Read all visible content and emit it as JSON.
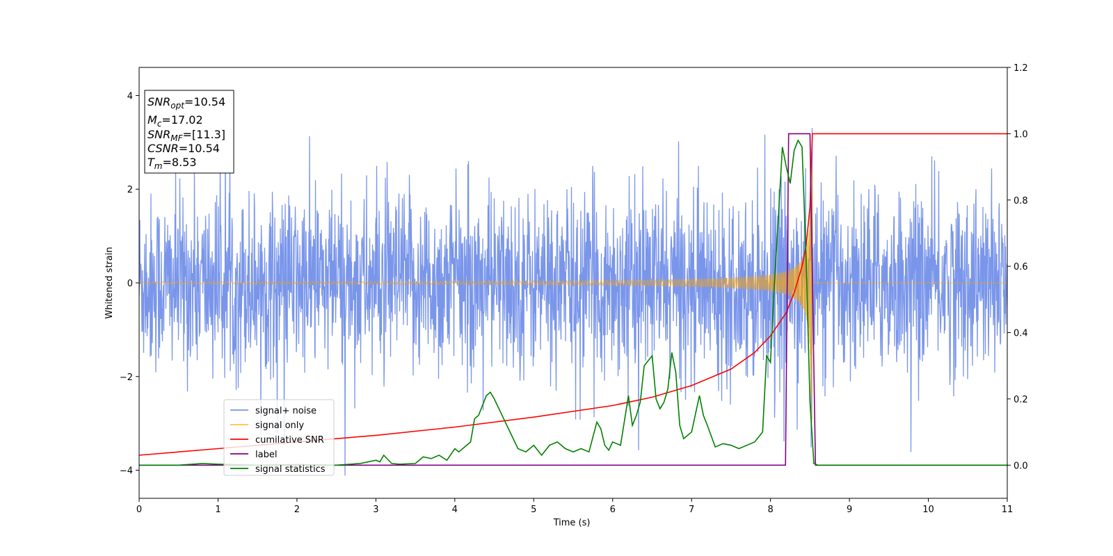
{
  "chart_data": {
    "type": "line",
    "title": "",
    "xlabel": "Time (s)",
    "ylabel": "Whitened strain",
    "xlim": [
      0,
      11
    ],
    "ylim": [
      -4.6,
      4.6
    ],
    "y2lim": [
      -0.1,
      1.2
    ],
    "x_ticks": [
      "0",
      "1",
      "2",
      "3",
      "4",
      "5",
      "6",
      "7",
      "8",
      "9",
      "10",
      "11"
    ],
    "y_ticks": [
      "−4",
      "−2",
      "0",
      "2",
      "4"
    ],
    "y2_ticks": [
      "0.0",
      "0.2",
      "0.4",
      "0.6",
      "0.8",
      "1.0",
      "1.2"
    ],
    "grid": false,
    "legend_position": "lower-left",
    "info_box": {
      "snr_opt": "=10.54",
      "mc": "=17.02",
      "snr_mf": "=[11.3]",
      "csnr": "=10.54",
      "tm": "=8.53"
    },
    "series": [
      {
        "name": "signal+ noise",
        "color": "#4169e1",
        "axis": "left",
        "description_values": {
          "noise_std": 1.0,
          "duration_s": 11,
          "peak_max": 4.2,
          "peak_min": -4.1
        }
      },
      {
        "name": "signal only",
        "color": "#ffa500",
        "axis": "left",
        "chirp": {
          "t_merge": 8.53,
          "amp_at_merge": 3.0,
          "amp_at_start": 0.02
        }
      },
      {
        "name": "cumilative SNR",
        "color": "#ff0000",
        "axis": "right",
        "x": [
          0,
          1,
          2,
          3,
          4,
          5,
          6,
          6.5,
          7,
          7.5,
          7.8,
          8.0,
          8.2,
          8.3,
          8.4,
          8.45,
          8.5,
          8.53,
          11
        ],
        "y": [
          0.03,
          0.05,
          0.07,
          0.09,
          0.115,
          0.145,
          0.18,
          0.205,
          0.24,
          0.29,
          0.34,
          0.39,
          0.46,
          0.52,
          0.6,
          0.66,
          0.78,
          1.0,
          1.0
        ]
      },
      {
        "name": "label",
        "color": "#800080",
        "axis": "right",
        "x": [
          0,
          8.19,
          8.23,
          8.5,
          8.57,
          11
        ],
        "y": [
          0,
          0,
          1.0,
          1.0,
          0,
          0
        ]
      },
      {
        "name": "signal statistics",
        "color": "#008000",
        "axis": "right",
        "x": [
          0,
          0.5,
          0.8,
          1.0,
          1.5,
          2.0,
          2.5,
          2.8,
          3.0,
          3.05,
          3.1,
          3.2,
          3.3,
          3.5,
          3.6,
          3.7,
          3.8,
          3.9,
          4.0,
          4.05,
          4.1,
          4.2,
          4.25,
          4.3,
          4.4,
          4.45,
          4.5,
          4.6,
          4.7,
          4.8,
          4.9,
          5.0,
          5.1,
          5.2,
          5.3,
          5.4,
          5.5,
          5.6,
          5.7,
          5.8,
          5.85,
          5.9,
          5.95,
          6.0,
          6.1,
          6.2,
          6.25,
          6.3,
          6.35,
          6.4,
          6.5,
          6.55,
          6.6,
          6.65,
          6.7,
          6.75,
          6.8,
          6.85,
          6.9,
          7.0,
          7.1,
          7.15,
          7.2,
          7.3,
          7.4,
          7.5,
          7.6,
          7.7,
          7.8,
          7.9,
          7.95,
          8.0,
          8.05,
          8.1,
          8.15,
          8.2,
          8.25,
          8.3,
          8.35,
          8.4,
          8.45,
          8.5,
          8.55,
          8.6,
          8.7,
          9,
          11
        ],
        "y": [
          0.0,
          0.0,
          0.005,
          0.003,
          0.0,
          0.002,
          0.0,
          0.005,
          0.015,
          0.01,
          0.03,
          0.005,
          0.003,
          0.005,
          0.025,
          0.02,
          0.03,
          0.015,
          0.05,
          0.04,
          0.05,
          0.07,
          0.14,
          0.15,
          0.21,
          0.22,
          0.2,
          0.15,
          0.1,
          0.05,
          0.04,
          0.06,
          0.03,
          0.06,
          0.07,
          0.05,
          0.04,
          0.05,
          0.04,
          0.13,
          0.11,
          0.06,
          0.045,
          0.07,
          0.06,
          0.21,
          0.12,
          0.15,
          0.19,
          0.3,
          0.33,
          0.2,
          0.17,
          0.19,
          0.23,
          0.34,
          0.28,
          0.12,
          0.08,
          0.1,
          0.21,
          0.15,
          0.12,
          0.055,
          0.065,
          0.06,
          0.05,
          0.06,
          0.07,
          0.1,
          0.33,
          0.31,
          0.55,
          0.75,
          0.96,
          0.9,
          0.85,
          0.95,
          0.98,
          0.96,
          0.63,
          0.19,
          0.005,
          0.0,
          0.0,
          0.0,
          0.0
        ]
      }
    ]
  }
}
